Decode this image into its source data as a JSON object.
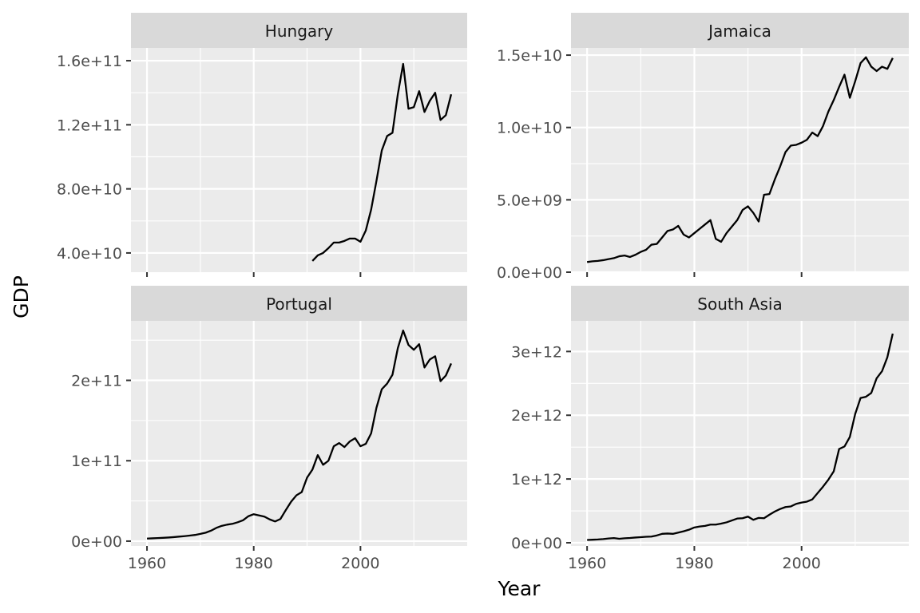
{
  "chart_data": {
    "type": "line",
    "xlabel": "Year",
    "ylabel": "GDP",
    "grid": true,
    "legend": "none",
    "facet_scales": "free_y",
    "xlim": [
      1957,
      2020
    ],
    "x_ticks": [
      1960,
      1980,
      2000
    ],
    "x_tick_labels": [
      "1960",
      "1980",
      "2000"
    ],
    "colors": {
      "panel_bg": "#ebebeb",
      "strip_bg": "#d9d9d9",
      "grid": "#ffffff",
      "line": "#000000"
    },
    "panels": [
      {
        "title": "Hungary",
        "ylim": [
          28000000000,
          168000000000
        ],
        "y_ticks": [
          40000000000,
          80000000000,
          120000000000,
          160000000000
        ],
        "y_tick_labels": [
          "4.0e+10",
          "8.0e+10",
          "1.2e+11",
          "1.6e+11"
        ],
        "x": [
          1991,
          1992,
          1993,
          1994,
          1995,
          1996,
          1997,
          1998,
          1999,
          2000,
          2001,
          2002,
          2003,
          2004,
          2005,
          2006,
          2007,
          2008,
          2009,
          2010,
          2011,
          2012,
          2013,
          2014,
          2015,
          2016,
          2017
        ],
        "y": [
          35000000000,
          38500000000,
          40000000000,
          43000000000,
          46500000000,
          46500000000,
          47500000000,
          49000000000,
          49000000000,
          47000000000,
          54000000000,
          67000000000,
          85000000000,
          104000000000,
          113000000000,
          115000000000,
          139000000000,
          158000000000,
          130000000000,
          131000000000,
          141000000000,
          128000000000,
          135000000000,
          140000000000,
          123000000000,
          126000000000,
          139000000000
        ]
      },
      {
        "title": "Jamaica",
        "ylim": [
          0,
          15500000000
        ],
        "y_ticks": [
          0,
          5000000000,
          10000000000,
          15000000000
        ],
        "y_tick_labels": [
          "0.0e+00",
          "5.0e+09",
          "1.0e+10",
          "1.5e+10"
        ],
        "x": [
          1960,
          1961,
          1962,
          1963,
          1964,
          1965,
          1966,
          1967,
          1968,
          1969,
          1970,
          1971,
          1972,
          1973,
          1974,
          1975,
          1976,
          1977,
          1978,
          1979,
          1980,
          1981,
          1982,
          1983,
          1984,
          1985,
          1986,
          1987,
          1988,
          1989,
          1990,
          1991,
          1992,
          1993,
          1994,
          1995,
          1996,
          1997,
          1998,
          1999,
          2000,
          2001,
          2002,
          2003,
          2004,
          2005,
          2006,
          2007,
          2008,
          2009,
          2010,
          2011,
          2012,
          2013,
          2014,
          2015,
          2016,
          2017
        ],
        "y": [
          700000000,
          750000000,
          780000000,
          830000000,
          900000000,
          970000000,
          1100000000,
          1150000000,
          1050000000,
          1200000000,
          1400000000,
          1550000000,
          1900000000,
          1950000000,
          2400000000,
          2850000000,
          2950000000,
          3200000000,
          2600000000,
          2400000000,
          2700000000,
          3000000000,
          3300000000,
          3600000000,
          2300000000,
          2100000000,
          2700000000,
          3150000000,
          3600000000,
          4300000000,
          4550000000,
          4100000000,
          3500000000,
          5350000000,
          5400000000,
          6400000000,
          7300000000,
          8300000000,
          8750000000,
          8800000000,
          8950000000,
          9150000000,
          9650000000,
          9400000000,
          10100000000,
          11100000000,
          11900000000,
          12800000000,
          13650000000,
          12050000000,
          13200000000,
          14450000000,
          14850000000,
          14200000000,
          13900000000,
          14200000000,
          14050000000,
          14800000000
        ]
      },
      {
        "title": "Portugal",
        "ylim": [
          -6000000000,
          274000000000
        ],
        "y_ticks": [
          0,
          100000000000,
          200000000000
        ],
        "y_tick_labels": [
          "0e+00",
          "1e+11",
          "2e+11"
        ],
        "x": [
          1960,
          1961,
          1962,
          1963,
          1964,
          1965,
          1966,
          1967,
          1968,
          1969,
          1970,
          1971,
          1972,
          1973,
          1974,
          1975,
          1976,
          1977,
          1978,
          1979,
          1980,
          1981,
          1982,
          1983,
          1984,
          1985,
          1986,
          1987,
          1988,
          1989,
          1990,
          1991,
          1992,
          1993,
          1994,
          1995,
          1996,
          1997,
          1998,
          1999,
          2000,
          2001,
          2002,
          2003,
          2004,
          2005,
          2006,
          2007,
          2008,
          2009,
          2010,
          2011,
          2012,
          2013,
          2014,
          2015,
          2016,
          2017
        ],
        "y": [
          3200000000,
          3500000000,
          3800000000,
          4100000000,
          4500000000,
          5000000000,
          5600000000,
          6200000000,
          6900000000,
          7700000000,
          9000000000,
          10500000000,
          13000000000,
          16500000000,
          19000000000,
          20500000000,
          21500000000,
          23500000000,
          26000000000,
          31000000000,
          33500000000,
          32000000000,
          30500000000,
          27000000000,
          24500000000,
          27500000000,
          38500000000,
          49000000000,
          57000000000,
          61000000000,
          79000000000,
          89000000000,
          107000000000,
          95000000000,
          100000000000,
          118000000000,
          122000000000,
          117000000000,
          124000000000,
          128000000000,
          118000000000,
          121000000000,
          134000000000,
          166000000000,
          189000000000,
          196000000000,
          207000000000,
          240000000000,
          262000000000,
          244000000000,
          238000000000,
          245000000000,
          216000000000,
          226000000000,
          230000000000,
          199000000000,
          206000000000,
          221000000000
        ]
      },
      {
        "title": "South Asia",
        "ylim": [
          -50000000000,
          3480000000000
        ],
        "y_ticks": [
          0,
          1000000000000,
          2000000000000,
          3000000000000
        ],
        "y_tick_labels": [
          "0e+00",
          "1e+12",
          "2e+12",
          "3e+12"
        ],
        "x": [
          1960,
          1961,
          1962,
          1963,
          1964,
          1965,
          1966,
          1967,
          1968,
          1969,
          1970,
          1971,
          1972,
          1973,
          1974,
          1975,
          1976,
          1977,
          1978,
          1979,
          1980,
          1981,
          1982,
          1983,
          1984,
          1985,
          1986,
          1987,
          1988,
          1989,
          1990,
          1991,
          1992,
          1993,
          1994,
          1995,
          1996,
          1997,
          1998,
          1999,
          2000,
          2001,
          2002,
          2003,
          2004,
          2005,
          2006,
          2007,
          2008,
          2009,
          2010,
          2011,
          2012,
          2013,
          2014,
          2015,
          2016,
          2017
        ],
        "y": [
          44000000000,
          48000000000,
          52000000000,
          58000000000,
          67000000000,
          74000000000,
          63000000000,
          70000000000,
          75000000000,
          82000000000,
          88000000000,
          94000000000,
          97000000000,
          115000000000,
          140000000000,
          145000000000,
          140000000000,
          160000000000,
          180000000000,
          205000000000,
          240000000000,
          255000000000,
          265000000000,
          285000000000,
          285000000000,
          300000000000,
          320000000000,
          350000000000,
          380000000000,
          385000000000,
          410000000000,
          360000000000,
          390000000000,
          385000000000,
          440000000000,
          490000000000,
          530000000000,
          560000000000,
          570000000000,
          610000000000,
          630000000000,
          645000000000,
          680000000000,
          780000000000,
          880000000000,
          990000000000,
          1120000000000,
          1470000000000,
          1510000000000,
          1660000000000,
          2020000000000,
          2270000000000,
          2290000000000,
          2350000000000,
          2580000000000,
          2690000000000,
          2910000000000,
          3280000000000
        ]
      }
    ]
  }
}
